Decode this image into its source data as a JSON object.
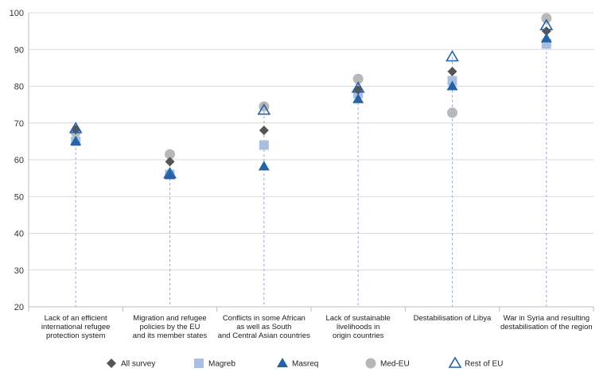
{
  "chart_data": {
    "type": "scatter",
    "title": "",
    "xlabel": "",
    "ylabel": "",
    "ylim": [
      20,
      100
    ],
    "yticks": [
      20,
      30,
      40,
      50,
      60,
      70,
      80,
      90,
      100
    ],
    "grid": "horizontal",
    "legend_position": "bottom",
    "categories": [
      [
        "Lack of an efficient",
        "international refugee",
        "protection system"
      ],
      [
        "Migration and refugee",
        "policies by the EU",
        "and its member states"
      ],
      [
        "Conflicts in some African",
        "as well as South",
        "and Central Asian countries"
      ],
      [
        "Lack of sustainable",
        "livelihoods in",
        "origin countries"
      ],
      [
        "Destabilisation of Libya"
      ],
      [
        "War in Syria and resulting",
        "destabilisation of the region"
      ]
    ],
    "series": [
      {
        "name": "All survey",
        "marker": "diamond",
        "color": "#555555",
        "values": [
          68.2,
          59.5,
          68.0,
          79.0,
          84.0,
          95.0
        ]
      },
      {
        "name": "Magreb",
        "marker": "square",
        "color": "#a9bfe0",
        "values": [
          65.0,
          56.0,
          64.0,
          78.0,
          81.5,
          91.5
        ]
      },
      {
        "name": "Masreq",
        "marker": "triangle",
        "color": "#2463a6",
        "values": [
          65.0,
          55.8,
          58.2,
          76.5,
          80.0,
          93.0
        ]
      },
      {
        "name": "Med-EU",
        "marker": "circle",
        "color": "#b8b8b8",
        "values": [
          67.5,
          61.5,
          74.5,
          82.0,
          72.8,
          98.5
        ]
      },
      {
        "name": "Rest of EU",
        "marker": "triangle-open",
        "color": "#2463a6",
        "values": [
          68.5,
          56.2,
          73.5,
          79.5,
          88.0,
          96.5
        ]
      }
    ]
  }
}
